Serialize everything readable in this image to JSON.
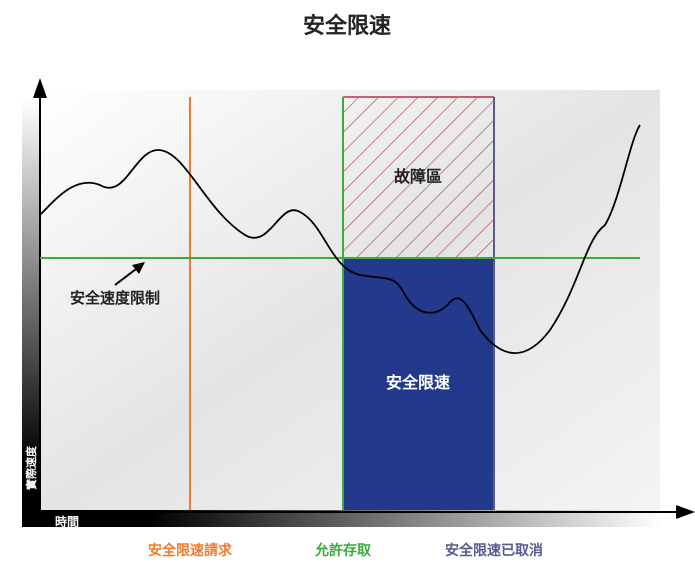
{
  "title": "安全限速",
  "fault_zone_label": "故障區",
  "speed_limit_label": "安全速度限制",
  "safe_speed_label": "安全限速",
  "y_axis_label": "實際速度",
  "x_axis_label": "時間",
  "markers": [
    {
      "label": "安全限速請求",
      "color": "#f07b2d"
    },
    {
      "label": "允許存取",
      "color": "#3cab3c"
    },
    {
      "label": "安全限速已取消",
      "color": "#5a5a8c"
    }
  ]
}
